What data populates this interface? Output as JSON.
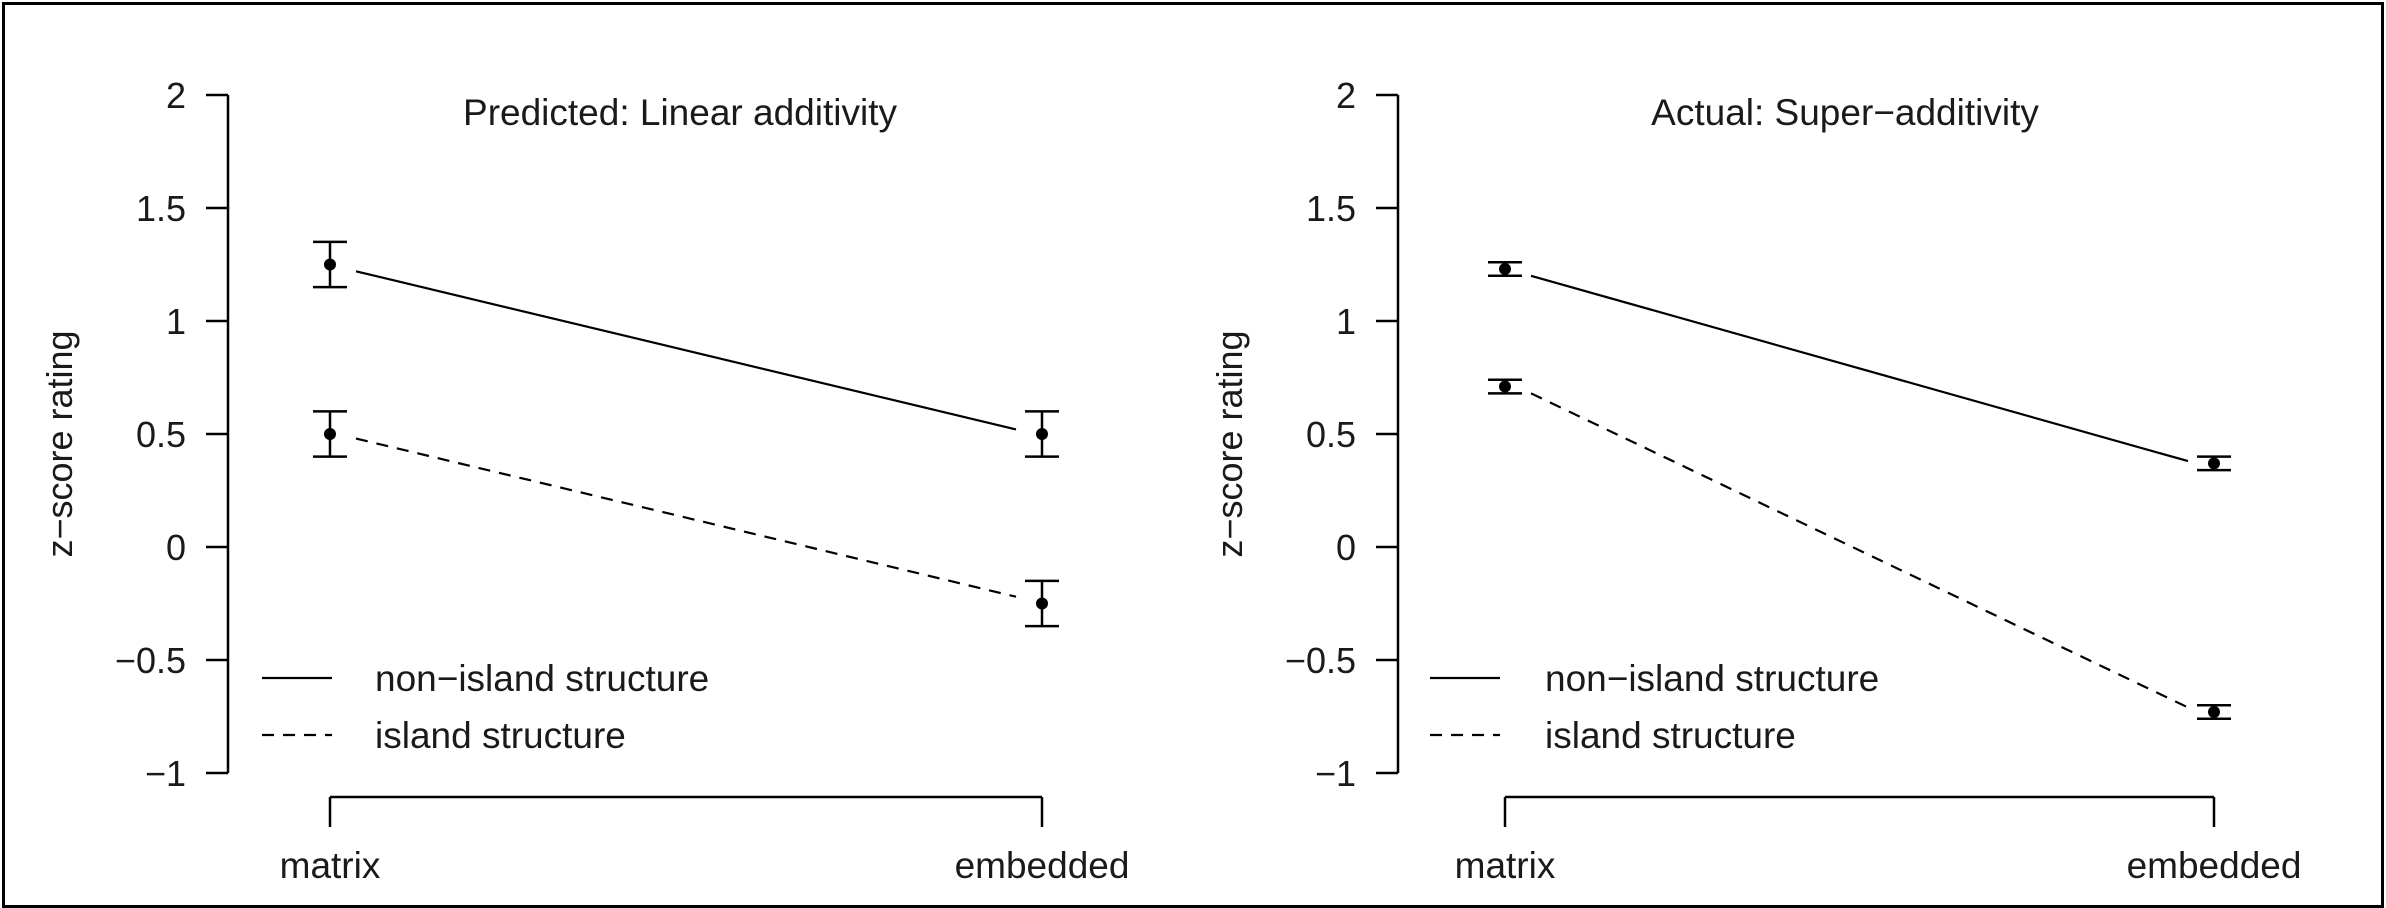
{
  "chart_data": [
    {
      "type": "line",
      "title": "Predicted: Linear additivity",
      "xlabel": "",
      "ylabel": "z−score rating",
      "categories": [
        "matrix",
        "embedded"
      ],
      "ylim": [
        -1,
        2
      ],
      "yticks": [
        "2",
        "1.5",
        "1",
        "0.5",
        "0",
        "−0.5",
        "−1"
      ],
      "ytick_values": [
        2,
        1.5,
        1,
        0.5,
        0,
        -0.5,
        -1
      ],
      "grid": false,
      "legend_position": "bottom-left",
      "series": [
        {
          "name": "non−island structure",
          "line_style": "solid",
          "values": [
            1.25,
            0.5
          ],
          "error": [
            0.1,
            0.1
          ],
          "line_values": [
            1.22,
            0.52
          ]
        },
        {
          "name": "island structure",
          "line_style": "dashed",
          "values": [
            0.5,
            -0.25
          ],
          "error": [
            0.1,
            0.1
          ],
          "line_values": [
            0.48,
            -0.22
          ]
        }
      ]
    },
    {
      "type": "line",
      "title": "Actual: Super−additivity",
      "xlabel": "",
      "ylabel": "z−score rating",
      "categories": [
        "matrix",
        "embedded"
      ],
      "ylim": [
        -1,
        2
      ],
      "yticks": [
        "2",
        "1.5",
        "1",
        "0.5",
        "0",
        "−0.5",
        "−1"
      ],
      "ytick_values": [
        2,
        1.5,
        1,
        0.5,
        0,
        -0.5,
        -1
      ],
      "grid": false,
      "legend_position": "bottom-left",
      "series": [
        {
          "name": "non−island structure",
          "line_style": "solid",
          "values": [
            1.23,
            0.37
          ],
          "error": [
            0.03,
            0.03
          ],
          "line_values": [
            1.2,
            0.38
          ]
        },
        {
          "name": "island structure",
          "line_style": "dashed",
          "values": [
            0.71,
            -0.73
          ],
          "error": [
            0.03,
            0.03
          ],
          "line_values": [
            0.68,
            -0.71
          ]
        }
      ]
    }
  ],
  "colors": {
    "ink": "#000000",
    "background": "#ffffff"
  }
}
